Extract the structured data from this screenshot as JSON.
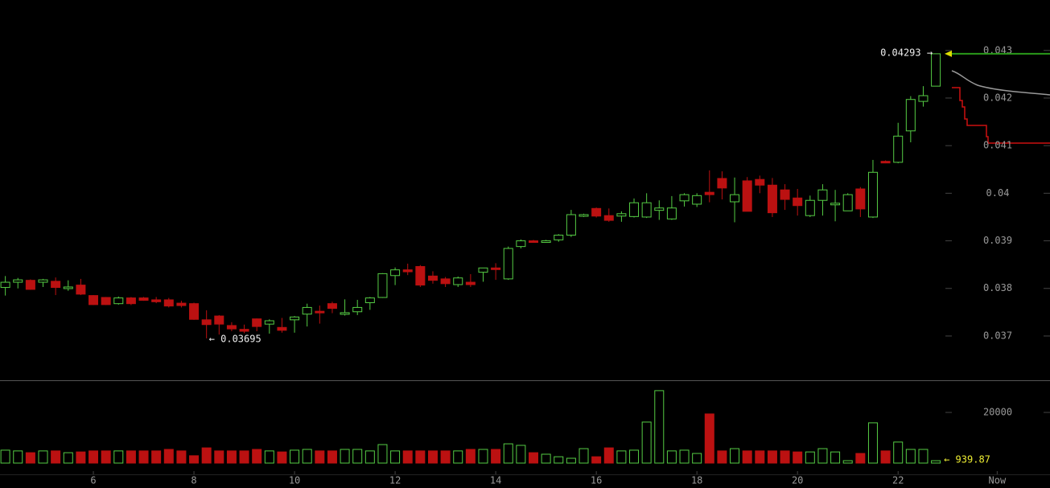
{
  "chart_data": [
    {
      "type": "candlestick",
      "x": [
        4.25,
        4.5,
        4.75,
        5,
        5.25,
        5.5,
        5.75,
        6,
        6.25,
        6.5,
        6.75,
        7,
        7.25,
        7.5,
        7.75,
        8,
        8.25,
        8.5,
        8.75,
        9,
        9.25,
        9.5,
        9.75,
        10,
        10.25,
        10.5,
        10.75,
        11,
        11.25,
        11.5,
        11.75,
        12,
        12.25,
        12.5,
        12.75,
        13,
        13.25,
        13.5,
        13.75,
        14,
        14.25,
        14.5,
        14.75,
        15,
        15.25,
        15.5,
        15.75,
        16,
        16.25,
        16.5,
        16.75,
        17,
        17.25,
        17.5,
        17.75,
        18,
        18.25,
        18.5,
        18.75,
        19,
        19.25,
        19.5,
        19.75,
        20,
        20.25,
        20.5,
        20.75,
        21,
        21.25,
        21.5,
        21.75,
        22,
        22.25,
        22.5,
        22.75
      ],
      "open": [
        0.03802,
        0.03813,
        0.03817,
        0.03813,
        0.03815,
        0.038,
        0.03807,
        0.03785,
        0.03781,
        0.03768,
        0.0378,
        0.0378,
        0.03776,
        0.03776,
        0.03769,
        0.03768,
        0.03734,
        0.03742,
        0.03722,
        0.03714,
        0.03736,
        0.03725,
        0.03718,
        0.03734,
        0.03746,
        0.03752,
        0.03768,
        0.03746,
        0.03751,
        0.0377,
        0.03781,
        0.03827,
        0.03839,
        0.03846,
        0.03826,
        0.0382,
        0.03808,
        0.03813,
        0.03834,
        0.03843,
        0.0382,
        0.03888,
        0.039,
        0.03898,
        0.03902,
        0.03912,
        0.03953,
        0.03968,
        0.03953,
        0.03952,
        0.03951,
        0.0395,
        0.03964,
        0.03946,
        0.03984,
        0.03977,
        0.04002,
        0.04031,
        0.03982,
        0.04026,
        0.04029,
        0.04017,
        0.04007,
        0.0399,
        0.03953,
        0.03985,
        0.03976,
        0.03963,
        0.04009,
        0.0395,
        0.04067,
        0.04065,
        0.04131,
        0.04193,
        0.04225
      ],
      "high": [
        0.03826,
        0.03822,
        0.03819,
        0.0382,
        0.03823,
        0.03817,
        0.0382,
        0.03786,
        0.03782,
        0.03783,
        0.03782,
        0.03782,
        0.03782,
        0.0378,
        0.03774,
        0.0377,
        0.03754,
        0.03744,
        0.03729,
        0.03724,
        0.03737,
        0.03735,
        0.03738,
        0.03742,
        0.03768,
        0.03764,
        0.03772,
        0.03777,
        0.03776,
        0.03782,
        0.03832,
        0.03844,
        0.03852,
        0.03849,
        0.03836,
        0.03824,
        0.03825,
        0.0383,
        0.03843,
        0.03853,
        0.03888,
        0.03903,
        0.03902,
        0.03902,
        0.03914,
        0.03965,
        0.03957,
        0.0397,
        0.03968,
        0.03962,
        0.03989,
        0.04,
        0.03985,
        0.03994,
        0.04,
        0.04,
        0.04048,
        0.04046,
        0.04033,
        0.04034,
        0.04037,
        0.04032,
        0.04019,
        0.04009,
        0.03995,
        0.04019,
        0.04007,
        0.04,
        0.04013,
        0.0407,
        0.04069,
        0.04148,
        0.04204,
        0.04225,
        0.04293
      ],
      "low": [
        0.03785,
        0.038,
        0.03797,
        0.03803,
        0.03786,
        0.03795,
        0.03786,
        0.03765,
        0.03765,
        0.03766,
        0.03765,
        0.03774,
        0.03769,
        0.0376,
        0.0376,
        0.03734,
        0.03695,
        0.03703,
        0.0371,
        0.03706,
        0.0371,
        0.03705,
        0.03707,
        0.03707,
        0.0372,
        0.03726,
        0.03748,
        0.03743,
        0.03744,
        0.03755,
        0.0378,
        0.03807,
        0.03828,
        0.03803,
        0.0381,
        0.03803,
        0.03803,
        0.03803,
        0.03814,
        0.03818,
        0.03818,
        0.03884,
        0.03896,
        0.03897,
        0.03898,
        0.03908,
        0.0395,
        0.03949,
        0.0394,
        0.0394,
        0.03949,
        0.03948,
        0.03944,
        0.03944,
        0.03972,
        0.03971,
        0.03981,
        0.03987,
        0.03939,
        0.03962,
        0.04,
        0.0395,
        0.03965,
        0.03953,
        0.0395,
        0.03953,
        0.03941,
        0.03963,
        0.0395,
        0.03948,
        0.04063,
        0.04063,
        0.04107,
        0.04182,
        0.04225
      ],
      "close": [
        0.03813,
        0.03818,
        0.03798,
        0.03818,
        0.03802,
        0.03803,
        0.03788,
        0.03766,
        0.03766,
        0.0378,
        0.03768,
        0.03775,
        0.03772,
        0.03763,
        0.03764,
        0.03735,
        0.03724,
        0.03725,
        0.03715,
        0.0371,
        0.0372,
        0.03732,
        0.03712,
        0.0374,
        0.0376,
        0.03749,
        0.03758,
        0.03749,
        0.0376,
        0.0378,
        0.03831,
        0.03839,
        0.03835,
        0.03807,
        0.03817,
        0.0381,
        0.03822,
        0.03808,
        0.03843,
        0.0384,
        0.03884,
        0.039,
        0.03897,
        0.039,
        0.03912,
        0.03955,
        0.03955,
        0.03952,
        0.03943,
        0.03957,
        0.0398,
        0.0398,
        0.03969,
        0.03969,
        0.03997,
        0.03995,
        0.03997,
        0.04011,
        0.03997,
        0.03962,
        0.04017,
        0.03959,
        0.03987,
        0.03974,
        0.03985,
        0.04007,
        0.03979,
        0.03997,
        0.03967,
        0.04044,
        0.04065,
        0.0412,
        0.04197,
        0.04205,
        0.04293
      ],
      "up_color": "#55cc44",
      "down_color": "#bb1111",
      "xlim": [
        4.144,
        25.02
      ],
      "ylim": [
        0.03607,
        0.04406
      ],
      "yticks": [
        0.043,
        0.042,
        0.041,
        0.04,
        0.039,
        0.038,
        0.037
      ],
      "annotations": [
        {
          "label": "0.04293 →",
          "value": 0.04293,
          "x": 22.75
        },
        {
          "label": "← 0.03695",
          "value": 0.03695,
          "x": 8.25
        }
      ]
    },
    {
      "type": "bar",
      "x": [
        4.25,
        4.5,
        4.75,
        5,
        5.25,
        5.5,
        5.75,
        6,
        6.25,
        6.5,
        6.75,
        7,
        7.25,
        7.5,
        7.75,
        8,
        8.25,
        8.5,
        8.75,
        9,
        9.25,
        9.5,
        9.75,
        10,
        10.25,
        10.5,
        10.75,
        11,
        11.25,
        11.5,
        11.75,
        12,
        12.25,
        12.5,
        12.75,
        13,
        13.25,
        13.5,
        13.75,
        14,
        14.25,
        14.5,
        14.75,
        15,
        15.25,
        15.5,
        15.75,
        16,
        16.25,
        16.5,
        16.75,
        17,
        17.25,
        17.5,
        17.75,
        18,
        18.25,
        18.5,
        18.75,
        19,
        19.25,
        19.5,
        19.75,
        20,
        20.25,
        20.5,
        20.75,
        21,
        21.25,
        21.5,
        21.75,
        22,
        22.25,
        22.5,
        22.75
      ],
      "values": [
        5100,
        4800,
        4100,
        4800,
        4800,
        4100,
        4400,
        4800,
        4800,
        4800,
        4800,
        4800,
        4800,
        5400,
        4800,
        2900,
        6000,
        4800,
        4800,
        4800,
        5400,
        4800,
        4400,
        5100,
        5400,
        4800,
        4800,
        5400,
        5400,
        4800,
        7300,
        4800,
        4800,
        4800,
        4800,
        4800,
        4800,
        5400,
        5400,
        5400,
        7600,
        7000,
        4100,
        3500,
        2500,
        1900,
        5700,
        2500,
        6000,
        4800,
        5100,
        16200,
        28600,
        4800,
        5100,
        3800,
        19400,
        4800,
        5700,
        4800,
        4800,
        4800,
        4800,
        4400,
        4400,
        5700,
        4400,
        950,
        3800,
        15900,
        4800,
        8300,
        5400,
        5400,
        939.87
      ],
      "xlim": [
        4.144,
        25.02
      ],
      "ylim": [
        0,
        32380
      ],
      "yticks": [
        20000
      ],
      "xticks": [
        6,
        8,
        10,
        12,
        14,
        16,
        18,
        20,
        22,
        {
          "value": 23.97,
          "label": "Now"
        }
      ],
      "annotations": [
        {
          "label": "← 939.87",
          "value": 939.87,
          "x": 22.75
        }
      ]
    }
  ]
}
